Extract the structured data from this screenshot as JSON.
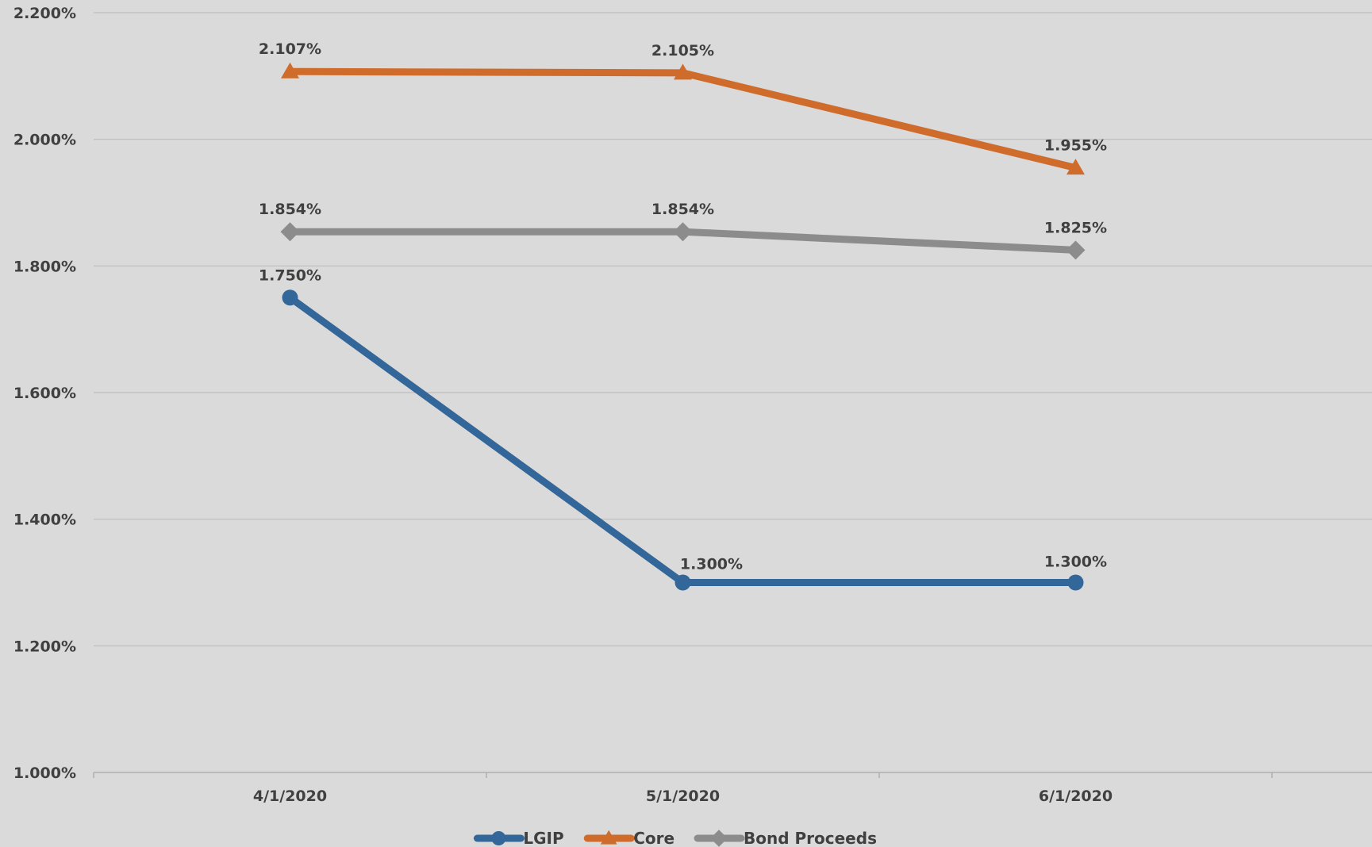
{
  "chart_data": {
    "type": "line",
    "title": "",
    "xlabel": "",
    "ylabel": "",
    "categories": [
      "4/1/2020",
      "5/1/2020",
      "6/1/2020"
    ],
    "ylim": [
      1.0,
      2.2
    ],
    "y_ticks": [
      1.0,
      1.2,
      1.4,
      1.6,
      1.8,
      2.0,
      2.2
    ],
    "y_tick_labels": [
      "1.000%",
      "1.200%",
      "1.400%",
      "1.600%",
      "1.800%",
      "2.000%",
      "2.200%"
    ],
    "grid": "horizontal",
    "legend_position": "bottom",
    "series": [
      {
        "name": "LGIP",
        "color": "#336699",
        "marker": "circle",
        "values": [
          1.75,
          1.3,
          1.3
        ],
        "labels": [
          "1.750%",
          "1.300%",
          "1.300%"
        ]
      },
      {
        "name": "Core",
        "color": "#cf6c2b",
        "marker": "triangle",
        "values": [
          2.107,
          2.105,
          1.955
        ],
        "labels": [
          "2.107%",
          "2.105%",
          "1.955%"
        ]
      },
      {
        "name": "Bond Proceeds",
        "color": "#8c8c8c",
        "marker": "diamond",
        "values": [
          1.854,
          1.854,
          1.825
        ],
        "labels": [
          "1.854%",
          "1.854%",
          "1.825%"
        ]
      }
    ]
  }
}
